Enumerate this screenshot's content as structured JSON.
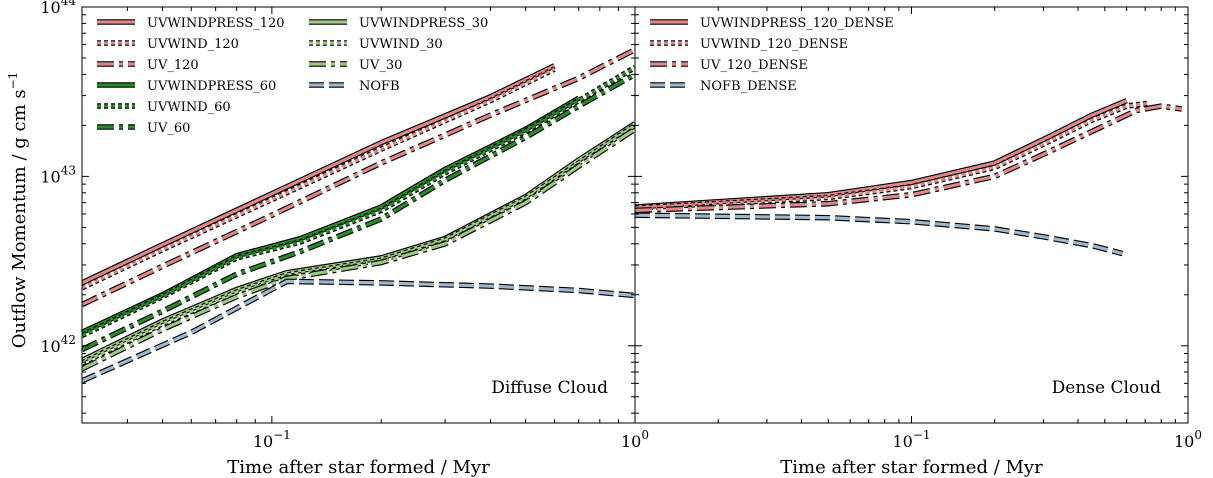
{
  "chart_data": {
    "type": "line",
    "ylabel": "Outflow Momentum / g cm s",
    "ylabel_sup": "−1",
    "xscale": "log",
    "yscale": "log",
    "ylim": [
      3.5e+41,
      1e+44
    ],
    "y_ticks": [
      {
        "value": 1e+42,
        "base": "10",
        "exp": "42"
      },
      {
        "value": 1e+43,
        "base": "10",
        "exp": "43"
      },
      {
        "value": 1e+44,
        "base": "10",
        "exp": "44"
      }
    ],
    "panels": [
      {
        "panel_label": "Diffuse Cloud",
        "xlabel": "Time after star formed / Myr",
        "xlim": [
          0.03,
          1.0
        ],
        "x_ticks": [
          {
            "value": 0.1,
            "base": "10",
            "exp": "−1"
          },
          {
            "value": 1.0,
            "base": "10",
            "exp": "0"
          }
        ],
        "legend_location": "upper left, two columns",
        "series": [
          {
            "name": "UVWINDPRESS_120",
            "color": "#e08888",
            "style": "solid",
            "x": [
              0.03,
              0.05,
              0.1,
              0.2,
              0.4,
              0.6
            ],
            "y": [
              2.35e+42,
              3.95e+42,
              7.9e+42,
              1.58e+43,
              2.95e+43,
              4.5e+43
            ]
          },
          {
            "name": "UVWIND_120",
            "color": "#e08888",
            "style": "dotted",
            "x": [
              0.03,
              0.05,
              0.1,
              0.2,
              0.4,
              0.6
            ],
            "y": [
              2.2e+42,
              3.7e+42,
              7.3e+42,
              1.45e+43,
              2.8e+43,
              4.3e+43
            ]
          },
          {
            "name": "UV_120",
            "color": "#e08888",
            "style": "dashdot",
            "x": [
              0.03,
              0.05,
              0.1,
              0.2,
              0.4,
              0.7,
              1.0
            ],
            "y": [
              1.75e+42,
              2.95e+42,
              5.9e+42,
              1.2e+43,
              2.3e+43,
              3.8e+43,
              5.6e+43
            ]
          },
          {
            "name": "UVWINDPRESS_60",
            "color": "#2a8a2a",
            "style": "solid",
            "x": [
              0.03,
              0.05,
              0.08,
              0.12,
              0.2,
              0.3,
              0.5,
              0.7
            ],
            "y": [
              1.2e+42,
              2e+42,
              3.4e+42,
              4.3e+42,
              6.6e+42,
              1.1e+43,
              1.9e+43,
              2.9e+43
            ]
          },
          {
            "name": "UVWIND_60",
            "color": "#2a8a2a",
            "style": "dotted",
            "x": [
              0.03,
              0.05,
              0.08,
              0.12,
              0.2,
              0.3,
              0.5,
              0.7,
              1.0
            ],
            "y": [
              1.15e+42,
              1.95e+42,
              3.3e+42,
              4.1e+42,
              6.3e+42,
              1.05e+43,
              1.85e+43,
              2.8e+43,
              4.4e+43
            ]
          },
          {
            "name": "UV_60",
            "color": "#2a8a2a",
            "style": "dashdot",
            "x": [
              0.03,
              0.05,
              0.08,
              0.12,
              0.2,
              0.3,
              0.5,
              0.7,
              1.0
            ],
            "y": [
              9.5e+41,
              1.6e+42,
              2.65e+42,
              3.6e+42,
              5.6e+42,
              9.5e+42,
              1.7e+43,
              2.6e+43,
              4e+43
            ]
          },
          {
            "name": "UVWINDPRESS_30",
            "color": "#9dc983",
            "style": "solid",
            "x": [
              0.03,
              0.05,
              0.08,
              0.11,
              0.2,
              0.3,
              0.5,
              0.7,
              1.0
            ],
            "y": [
              8.2e+41,
              1.4e+42,
              2.15e+42,
              2.7e+42,
              3.3e+42,
              4.3e+42,
              7.6e+42,
              1.25e+43,
              2.05e+43
            ]
          },
          {
            "name": "UVWIND_30",
            "color": "#9dc983",
            "style": "dotted",
            "x": [
              0.03,
              0.05,
              0.08,
              0.11,
              0.2,
              0.3,
              0.5,
              0.7,
              1.0
            ],
            "y": [
              7.9e+41,
              1.35e+42,
              2.08e+42,
              2.62e+42,
              3.2e+42,
              4.2e+42,
              7.4e+42,
              1.2e+43,
              2e+43
            ]
          },
          {
            "name": "UV_30",
            "color": "#9dc983",
            "style": "dashdot",
            "x": [
              0.03,
              0.05,
              0.08,
              0.11,
              0.2,
              0.3,
              0.5,
              0.7,
              1.0
            ],
            "y": [
              7.3e+41,
              1.25e+42,
              1.95e+42,
              2.5e+42,
              3.1e+42,
              4e+42,
              7e+42,
              1.15e+43,
              1.9e+43
            ]
          },
          {
            "name": "NOFB",
            "color": "#9db8cf",
            "style": "dashed",
            "x": [
              0.03,
              0.06,
              0.11,
              0.2,
              0.4,
              0.7,
              1.0
            ],
            "y": [
              6.2e+41,
              1.2e+42,
              2.4e+42,
              2.35e+42,
              2.25e+42,
              2.12e+42,
              1.98e+42
            ]
          }
        ]
      },
      {
        "panel_label": "Dense Cloud",
        "xlabel": "Time after star formed / Myr",
        "xlim": [
          0.01,
          1.0
        ],
        "x_ticks": [
          {
            "value": 0.1,
            "base": "10",
            "exp": "−1"
          },
          {
            "value": 1.0,
            "base": "10",
            "exp": "0"
          }
        ],
        "legend_location": "upper left",
        "series": [
          {
            "name": "UVWINDPRESS_120_DENSE",
            "color": "#e08888",
            "style": "solid",
            "x": [
              0.01,
              0.05,
              0.1,
              0.2,
              0.3,
              0.45,
              0.6
            ],
            "y": [
              6.6e+42,
              7.8e+42,
              9.2e+42,
              1.2e+43,
              1.65e+43,
              2.3e+43,
              2.8e+43
            ]
          },
          {
            "name": "UVWIND_120_DENSE",
            "color": "#e08888",
            "style": "dotted",
            "x": [
              0.01,
              0.05,
              0.1,
              0.2,
              0.3,
              0.45,
              0.6,
              0.72
            ],
            "y": [
              6.5e+42,
              7.5e+42,
              8.7e+42,
              1.13e+43,
              1.55e+43,
              2.15e+43,
              2.6e+43,
              2.7e+43
            ]
          },
          {
            "name": "UV_120_DENSE",
            "color": "#e08888",
            "style": "dashdot",
            "x": [
              0.01,
              0.05,
              0.1,
              0.2,
              0.3,
              0.5,
              0.65,
              0.8,
              0.95
            ],
            "y": [
              6.3e+42,
              6.9e+42,
              7.8e+42,
              1e+43,
              1.35e+43,
              2e+43,
              2.45e+43,
              2.6e+43,
              2.5e+43
            ]
          },
          {
            "name": "NOFB_DENSE",
            "color": "#9db8cf",
            "style": "dashed",
            "x": [
              0.01,
              0.05,
              0.1,
              0.2,
              0.3,
              0.45,
              0.58
            ],
            "y": [
              5.9e+42,
              5.7e+42,
              5.4e+42,
              4.9e+42,
              4.4e+42,
              3.9e+42,
              3.5e+42
            ]
          }
        ]
      }
    ]
  }
}
